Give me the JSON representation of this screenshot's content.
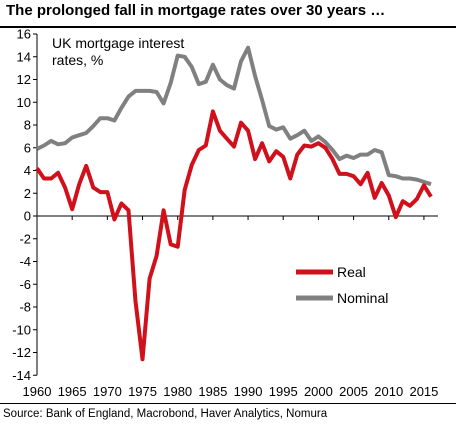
{
  "header": {
    "title": "The prolonged fall in mortgage rates over 30 years …"
  },
  "footer": {
    "source": "Source: Bank of England, Macrobond, Haver Analytics, Nomura"
  },
  "chart_data": {
    "type": "line",
    "title": "The prolonged fall in mortgage rates over 30 years …",
    "annotation": [
      "UK mortgage interest",
      "rates, %"
    ],
    "ylim": [
      -14,
      16
    ],
    "yticks": [
      16,
      14,
      12,
      10,
      8,
      6,
      4,
      2,
      0,
      -2,
      -4,
      -6,
      -8,
      -10,
      -12,
      -14
    ],
    "xlim": [
      1960,
      2017
    ],
    "xticks": [
      1960,
      1965,
      1970,
      1975,
      1980,
      1985,
      1990,
      1995,
      2000,
      2005,
      2010,
      2015
    ],
    "legend_position": "lower-right",
    "series": [
      {
        "name": "Real",
        "color": "#d0101b",
        "x": [
          1960,
          1961,
          1962,
          1963,
          1964,
          1965,
          1966,
          1967,
          1968,
          1969,
          1970,
          1971,
          1972,
          1973,
          1974,
          1975,
          1976,
          1977,
          1978,
          1979,
          1980,
          1981,
          1982,
          1983,
          1984,
          1985,
          1986,
          1987,
          1988,
          1989,
          1990,
          1991,
          1992,
          1993,
          1994,
          1995,
          1996,
          1997,
          1998,
          1999,
          2000,
          2001,
          2002,
          2003,
          2004,
          2005,
          2006,
          2007,
          2008,
          2009,
          2010,
          2011,
          2012,
          2013,
          2014,
          2015,
          2016
        ],
        "y": [
          4.2,
          3.3,
          3.3,
          3.8,
          2.5,
          0.6,
          2.8,
          4.4,
          2.5,
          2.1,
          2.1,
          -0.3,
          1.1,
          0.5,
          -7.5,
          -12.6,
          -5.5,
          -3.5,
          0.5,
          -2.5,
          -2.7,
          2.3,
          4.5,
          5.8,
          6.2,
          9.2,
          7.5,
          6.8,
          6.1,
          8.2,
          7.5,
          5.0,
          6.4,
          4.8,
          5.7,
          5.2,
          3.3,
          5.4,
          6.2,
          6.1,
          6.4,
          6.0,
          5.0,
          3.7,
          3.7,
          3.5,
          2.8,
          3.8,
          1.6,
          2.9,
          1.8,
          -0.1,
          1.3,
          0.9,
          1.5,
          2.7,
          1.7
        ]
      },
      {
        "name": "Nominal",
        "color": "#808080",
        "x": [
          1960,
          1961,
          1962,
          1963,
          1964,
          1965,
          1966,
          1967,
          1968,
          1969,
          1970,
          1971,
          1972,
          1973,
          1974,
          1975,
          1976,
          1977,
          1978,
          1979,
          1980,
          1981,
          1982,
          1983,
          1984,
          1985,
          1986,
          1987,
          1988,
          1989,
          1990,
          1991,
          1992,
          1993,
          1994,
          1995,
          1996,
          1997,
          1998,
          1999,
          2000,
          2001,
          2002,
          2003,
          2004,
          2005,
          2006,
          2007,
          2008,
          2009,
          2010,
          2011,
          2012,
          2013,
          2014,
          2015,
          2016
        ],
        "y": [
          5.9,
          6.2,
          6.6,
          6.3,
          6.4,
          6.9,
          7.1,
          7.3,
          7.9,
          8.6,
          8.6,
          8.4,
          9.5,
          10.5,
          11.0,
          11.0,
          11.0,
          10.9,
          9.9,
          11.7,
          14.1,
          14.0,
          13.1,
          11.6,
          11.8,
          13.3,
          12.0,
          11.5,
          11.2,
          13.6,
          14.8,
          12.3,
          10.2,
          7.9,
          7.6,
          7.8,
          6.8,
          7.1,
          7.5,
          6.6,
          7.0,
          6.5,
          5.8,
          5.0,
          5.3,
          5.1,
          5.4,
          5.4,
          5.8,
          5.6,
          3.6,
          3.5,
          3.3,
          3.3,
          3.2,
          3.0,
          2.8
        ]
      }
    ]
  }
}
